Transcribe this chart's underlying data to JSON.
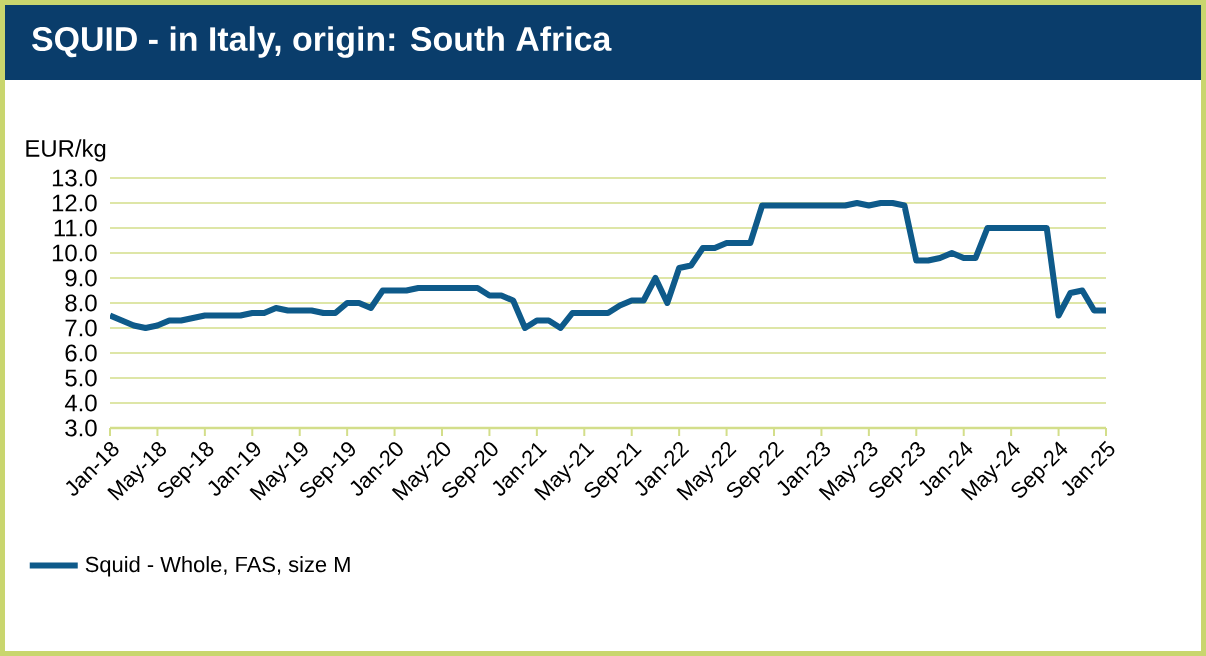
{
  "chart_data": {
    "type": "line",
    "title": "SQUID - in Italy, origin: South Africa",
    "ylabel": "EUR/kg",
    "categories": [
      "Jan-18",
      null,
      null,
      null,
      "May-18",
      null,
      null,
      null,
      "Sep-18",
      null,
      null,
      null,
      "Jan-19",
      null,
      null,
      null,
      "May-19",
      null,
      null,
      null,
      "Sep-19",
      null,
      null,
      null,
      "Jan-20",
      null,
      null,
      null,
      "May-20",
      null,
      null,
      null,
      "Sep-20",
      null,
      null,
      null,
      "Jan-21",
      null,
      null,
      null,
      "May-21",
      null,
      null,
      null,
      "Sep-21",
      null,
      null,
      null,
      "Jan-22",
      null,
      null,
      null,
      "May-22",
      null,
      null,
      null,
      "Sep-22",
      null,
      null,
      null,
      "Jan-23",
      null,
      null,
      null,
      "May-23",
      null,
      null,
      null,
      "Sep-23",
      null,
      null,
      null,
      "Jan-24",
      null,
      null,
      null,
      "May-24",
      null,
      null,
      null,
      "Sep-24",
      null,
      null,
      null,
      "Jan-25"
    ],
    "series": [
      {
        "name": "Squid - Whole, FAS, size M",
        "color": "#0e5a8a",
        "values": [
          7.5,
          7.3,
          7.1,
          7.0,
          7.1,
          7.3,
          7.3,
          7.4,
          7.5,
          7.5,
          7.5,
          7.5,
          7.6,
          7.6,
          7.8,
          7.7,
          7.7,
          7.7,
          7.6,
          7.6,
          8.0,
          8.0,
          7.8,
          8.5,
          8.5,
          8.5,
          8.6,
          8.6,
          8.6,
          8.6,
          8.6,
          8.6,
          8.3,
          8.3,
          8.1,
          7.0,
          7.3,
          7.3,
          7.0,
          7.6,
          7.6,
          7.6,
          7.6,
          7.9,
          8.1,
          8.1,
          9.0,
          8.0,
          9.4,
          9.5,
          10.2,
          10.2,
          10.4,
          10.4,
          10.4,
          11.9,
          11.9,
          11.9,
          11.9,
          11.9,
          11.9,
          11.9,
          11.9,
          12.0,
          11.9,
          12.0,
          12.0,
          11.9,
          9.7,
          9.7,
          9.8,
          10.0,
          9.8,
          9.8,
          11.0,
          11.0,
          11.0,
          11.0,
          11.0,
          11.0,
          7.5,
          8.4,
          8.5,
          7.7,
          7.7
        ]
      }
    ],
    "ylim": [
      3,
      13
    ],
    "yticks": [
      {
        "value": 3,
        "label": "3.0"
      },
      {
        "value": 4,
        "label": "4.0"
      },
      {
        "value": 5,
        "label": "5.0"
      },
      {
        "value": 6,
        "label": "6.0"
      },
      {
        "value": 7,
        "label": "7.0"
      },
      {
        "value": 8,
        "label": "8.0"
      },
      {
        "value": 9,
        "label": "9.0"
      },
      {
        "value": 10,
        "label": "10.0"
      },
      {
        "value": 11,
        "label": "11.0"
      },
      {
        "value": 12,
        "label": "12.0"
      },
      {
        "value": 13,
        "label": "13.0"
      }
    ],
    "grid": "y",
    "legend": "bottom",
    "marker": "none",
    "line_style": "solid"
  }
}
